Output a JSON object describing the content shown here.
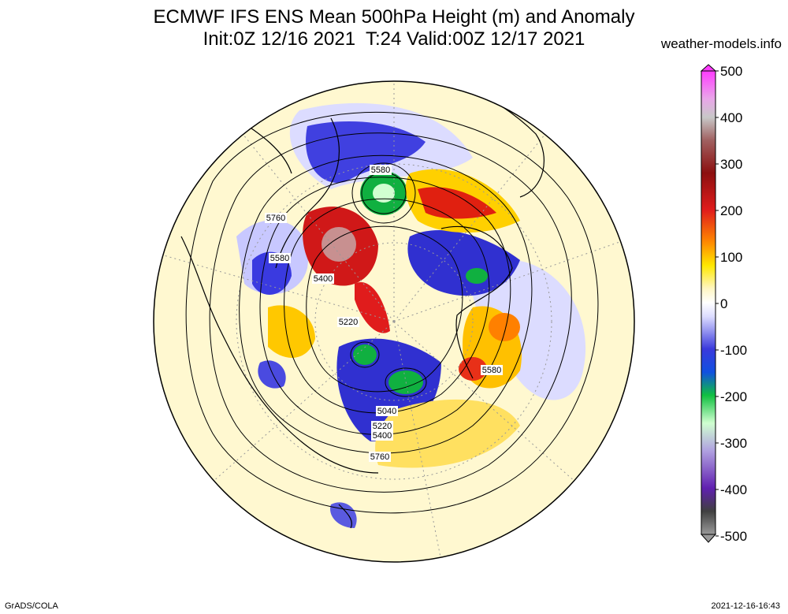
{
  "title": {
    "line1": "ECMWF IFS ENS Mean 500hPa Height (m) and Anomaly",
    "line2": "Init:0Z 12/16 2021  T:24 Valid:00Z 12/17 2021"
  },
  "credit": "weather-models.info",
  "footer": {
    "left": "GrADS/COLA",
    "right": "2021-12-16-16:43"
  },
  "colorbar": {
    "ticks": [
      "500",
      "400",
      "300",
      "200",
      "100",
      "0",
      "-100",
      "-200",
      "-300",
      "-400",
      "-500"
    ],
    "stops": [
      "#ff3cff",
      "#d9a8d9",
      "#b0b0b0",
      "#8c2a2a",
      "#d81c1c",
      "#ff7a00",
      "#ffe000",
      "#fff8c8",
      "#ffffff",
      "#d8d8ff",
      "#3a3adc",
      "#10c040",
      "#c8ffc8",
      "#8a6ad0",
      "#4a0090",
      "#808080"
    ]
  },
  "contour_labels": [
    "5580",
    "5760",
    "5580",
    "5400",
    "5220",
    "5580",
    "5040",
    "5220",
    "5400",
    "5760"
  ]
}
